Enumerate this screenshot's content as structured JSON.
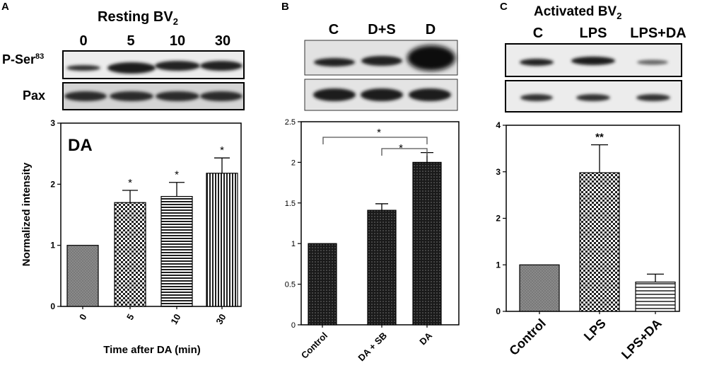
{
  "panel_a": {
    "letter": "A",
    "header": "Resting BV",
    "header_sub": "2",
    "lane_labels": [
      "0",
      "5",
      "10",
      "30"
    ],
    "row_labels": [
      "P-Ser",
      "Pax"
    ],
    "row_label_sup": "83",
    "inset_text": "DA"
  },
  "panel_b": {
    "letter": "B",
    "lane_labels": [
      "C",
      "D+S",
      "D"
    ]
  },
  "panel_c": {
    "letter": "C",
    "header": "Activated BV",
    "header_sub": "2",
    "lane_labels": [
      "C",
      "LPS",
      "LPS+DA"
    ]
  },
  "colors": {
    "bar_dark": "#1f1f1f",
    "bar_gray": "#7a7a7a",
    "blot_band": "#2b2b2b",
    "blot_bg": "#e9e9e9"
  },
  "chart_data": [
    {
      "type": "bar",
      "categories": [
        "0",
        "5",
        "10",
        "30"
      ],
      "values": [
        1.0,
        1.7,
        1.8,
        2.18
      ],
      "errors": [
        0,
        0.2,
        0.23,
        0.25
      ],
      "annotations": [
        "",
        "*",
        "*",
        "*"
      ],
      "ylabel": "Normalized intensity",
      "xlabel": "Time after DA (min)",
      "ylim": [
        0,
        3
      ],
      "yticks": [
        "0",
        "1",
        "2",
        "3"
      ]
    },
    {
      "type": "bar",
      "categories": [
        "Control",
        "DA + SB",
        "DA"
      ],
      "values": [
        1.0,
        1.41,
        2.0
      ],
      "errors": [
        0,
        0.08,
        0.12
      ],
      "annotations": [
        "",
        "",
        ""
      ],
      "significance": [
        {
          "from": "Control",
          "to": "DA",
          "label": "*"
        },
        {
          "from": "DA + SB",
          "to": "DA",
          "label": "*"
        }
      ],
      "ylim": [
        0,
        2.5
      ],
      "yticks": [
        "0",
        "0.5",
        "1",
        "1.5",
        "2",
        "2.5"
      ]
    },
    {
      "type": "bar",
      "categories": [
        "Control",
        "LPS",
        "LPS+DA"
      ],
      "values": [
        1.0,
        2.98,
        0.63
      ],
      "errors": [
        0,
        0.6,
        0.17
      ],
      "annotations": [
        "",
        "**",
        ""
      ],
      "ylim": [
        0,
        4
      ],
      "yticks": [
        "0",
        "1",
        "2",
        "3",
        "4"
      ]
    }
  ]
}
